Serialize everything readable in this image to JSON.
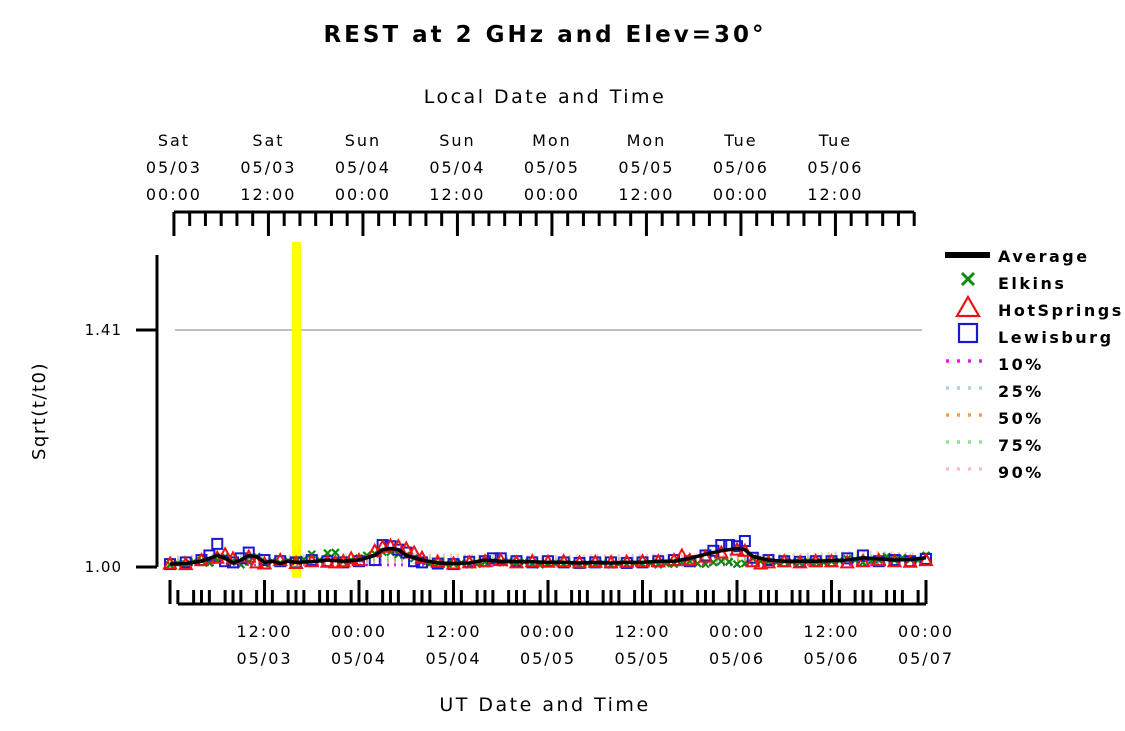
{
  "chart_data": {
    "type": "line",
    "title": "REST at 2 GHz and Elev=30°",
    "xlabel": "UT Date and Time",
    "top_xlabel": "Local Date and Time",
    "ylabel": "Sqrt(t/t0)",
    "ylim": [
      1.0,
      1.52
    ],
    "y_ticks": [
      {
        "value": 1.0,
        "label": "1.00"
      },
      {
        "value": 1.41,
        "label": "1.41"
      }
    ],
    "y_gridline": 1.41,
    "grid": false,
    "legend_position": "right",
    "bottom_ticks": [
      {
        "hour": 12,
        "time": "12:00",
        "date": "05/03"
      },
      {
        "hour": 24,
        "time": "00:00",
        "date": "05/04"
      },
      {
        "hour": 36,
        "time": "12:00",
        "date": "05/04"
      },
      {
        "hour": 48,
        "time": "00:00",
        "date": "05/05"
      },
      {
        "hour": 60,
        "time": "12:00",
        "date": "05/05"
      },
      {
        "hour": 72,
        "time": "00:00",
        "date": "05/06"
      },
      {
        "hour": 84,
        "time": "12:00",
        "date": "05/06"
      },
      {
        "hour": 96,
        "time": "00:00",
        "date": "05/07"
      }
    ],
    "top_ticks": [
      {
        "hour": 0.5,
        "day": "Sat",
        "date": "05/03",
        "time": "00:00"
      },
      {
        "hour": 12.5,
        "day": "Sat",
        "date": "05/03",
        "time": "12:00"
      },
      {
        "hour": 24.5,
        "day": "Sun",
        "date": "05/04",
        "time": "00:00"
      },
      {
        "hour": 36.5,
        "day": "Sun",
        "date": "05/04",
        "time": "12:00"
      },
      {
        "hour": 48.5,
        "day": "Mon",
        "date": "05/05",
        "time": "00:00"
      },
      {
        "hour": 60.5,
        "day": "Mon",
        "date": "05/05",
        "time": "12:00"
      },
      {
        "hour": 72.5,
        "day": "Tue",
        "date": "05/06",
        "time": "00:00"
      },
      {
        "hour": 84.5,
        "day": "Tue",
        "date": "05/06",
        "time": "12:00"
      }
    ],
    "marker_hour": 16,
    "legend": [
      {
        "label": "Average",
        "style": "line",
        "color": "#000000"
      },
      {
        "label": "Elkins",
        "style": "x",
        "color": "#0a8a0a"
      },
      {
        "label": "HotSprings",
        "style": "triangle",
        "color": "#ee1111"
      },
      {
        "label": "Lewisburg",
        "style": "square",
        "color": "#1a1acc"
      },
      {
        "label": "10%",
        "style": "dotted",
        "color": "#e020e0"
      },
      {
        "label": "25%",
        "style": "dotted",
        "color": "#a8d4e4"
      },
      {
        "label": "50%",
        "style": "dotted",
        "color": "#f4a040"
      },
      {
        "label": "75%",
        "style": "dotted",
        "color": "#90e090"
      },
      {
        "label": "90%",
        "style": "dotted",
        "color": "#f8c0c8"
      }
    ],
    "series": [
      {
        "name": "Average",
        "x": [
          0,
          2,
          4,
          6,
          7,
          8,
          9,
          10,
          11,
          12,
          13,
          14,
          15,
          16,
          18,
          20,
          22,
          24,
          26,
          27,
          28,
          29,
          30,
          32,
          34,
          36,
          38,
          40,
          42,
          44,
          46,
          48,
          50,
          52,
          54,
          56,
          58,
          60,
          62,
          64,
          66,
          68,
          70,
          72,
          73,
          74,
          76,
          78,
          80,
          82,
          84,
          86,
          88,
          90,
          92,
          94,
          96
        ],
        "y": [
          1.005,
          1.006,
          1.01,
          1.02,
          1.015,
          1.007,
          1.012,
          1.02,
          1.018,
          1.008,
          1.01,
          1.006,
          1.01,
          1.008,
          1.009,
          1.012,
          1.01,
          1.012,
          1.02,
          1.03,
          1.032,
          1.03,
          1.02,
          1.012,
          1.007,
          1.006,
          1.007,
          1.012,
          1.01,
          1.009,
          1.009,
          1.008,
          1.008,
          1.007,
          1.008,
          1.007,
          1.008,
          1.008,
          1.01,
          1.01,
          1.015,
          1.022,
          1.028,
          1.032,
          1.03,
          1.018,
          1.012,
          1.01,
          1.01,
          1.01,
          1.011,
          1.012,
          1.016,
          1.014,
          1.012,
          1.013,
          1.016
        ]
      },
      {
        "name": "Elkins",
        "x": [
          0,
          1,
          2,
          3,
          4,
          5,
          6,
          7,
          8,
          9,
          10,
          11,
          12,
          13,
          14,
          15,
          16,
          17,
          18,
          19,
          20,
          21,
          22,
          23,
          24,
          25,
          26,
          27,
          28,
          29,
          30,
          31,
          32,
          33,
          34,
          35,
          36,
          37,
          38,
          39,
          40,
          41,
          42,
          43,
          44,
          45,
          46,
          47,
          48,
          49,
          50,
          51,
          52,
          53,
          54,
          55,
          56,
          57,
          58,
          59,
          60,
          61,
          62,
          63,
          64,
          65,
          66,
          67,
          68,
          69,
          70,
          71,
          72,
          73,
          74,
          75,
          76,
          77,
          78,
          79,
          80,
          81,
          82,
          83,
          84,
          85,
          86,
          87,
          88,
          89,
          90,
          91,
          92,
          93,
          94,
          95,
          96
        ],
        "y": [
          1.004,
          1.006,
          1.005,
          1.009,
          1.011,
          1.007,
          1.012,
          1.018,
          1.01,
          1.004,
          1.009,
          1.018,
          1.006,
          1.01,
          1.007,
          1.011,
          1.01,
          1.013,
          1.022,
          1.012,
          1.024,
          1.025,
          1.01,
          1.012,
          1.015,
          1.02,
          1.023,
          1.026,
          1.026,
          1.022,
          1.02,
          1.015,
          1.01,
          1.006,
          1.007,
          1.005,
          1.006,
          1.007,
          1.004,
          1.005,
          1.009,
          1.01,
          1.008,
          1.01,
          1.007,
          1.009,
          1.006,
          1.004,
          1.006,
          1.007,
          1.005,
          1.006,
          1.004,
          1.006,
          1.005,
          1.007,
          1.004,
          1.006,
          1.005,
          1.006,
          1.005,
          1.006,
          1.004,
          1.006,
          1.005,
          1.008,
          1.01,
          1.006,
          1.005,
          1.008,
          1.01,
          1.009,
          1.005,
          1.006,
          1.015,
          1.01,
          1.009,
          1.008,
          1.01,
          1.009,
          1.008,
          1.01,
          1.009,
          1.008,
          1.01,
          1.011,
          1.014,
          1.012,
          1.008,
          1.01,
          1.012,
          1.018,
          1.012,
          1.016,
          1.013,
          1.012,
          1.02
        ]
      },
      {
        "name": "HotSprings",
        "x": [
          0,
          2,
          4,
          6,
          7,
          8,
          10,
          11,
          12,
          14,
          16,
          18,
          20,
          21,
          22,
          23,
          24,
          26,
          27,
          28,
          29,
          30,
          31,
          32,
          34,
          36,
          38,
          40,
          42,
          44,
          46,
          48,
          50,
          52,
          54,
          56,
          58,
          60,
          62,
          64,
          65,
          66,
          68,
          70,
          72,
          73,
          74,
          75,
          76,
          78,
          80,
          82,
          84,
          86,
          88,
          90,
          92,
          94,
          96
        ],
        "y": [
          1.006,
          1.005,
          1.012,
          1.016,
          1.022,
          1.015,
          1.018,
          1.008,
          1.006,
          1.012,
          1.007,
          1.01,
          1.009,
          1.008,
          1.01,
          1.015,
          1.012,
          1.028,
          1.035,
          1.037,
          1.036,
          1.032,
          1.025,
          1.016,
          1.009,
          1.006,
          1.008,
          1.01,
          1.012,
          1.008,
          1.01,
          1.009,
          1.01,
          1.008,
          1.009,
          1.008,
          1.009,
          1.01,
          1.01,
          1.012,
          1.02,
          1.012,
          1.018,
          1.025,
          1.03,
          1.028,
          1.01,
          1.006,
          1.008,
          1.01,
          1.008,
          1.01,
          1.01,
          1.008,
          1.01,
          1.012,
          1.01,
          1.009,
          1.012
        ]
      },
      {
        "name": "Lewisburg",
        "x": [
          0,
          2,
          4,
          5,
          6,
          7,
          8,
          9,
          10,
          12,
          14,
          16,
          18,
          20,
          22,
          24,
          26,
          27,
          28,
          29,
          30,
          31,
          32,
          34,
          36,
          38,
          40,
          41,
          42,
          44,
          46,
          48,
          50,
          52,
          54,
          56,
          58,
          60,
          62,
          64,
          66,
          68,
          69,
          70,
          71,
          72,
          73,
          74,
          76,
          78,
          80,
          82,
          84,
          86,
          88,
          90,
          92,
          94,
          96
        ],
        "y": [
          1.005,
          1.008,
          1.012,
          1.02,
          1.04,
          1.01,
          1.008,
          1.015,
          1.025,
          1.012,
          1.01,
          1.008,
          1.012,
          1.01,
          1.008,
          1.01,
          1.012,
          1.038,
          1.036,
          1.03,
          1.025,
          1.01,
          1.008,
          1.006,
          1.005,
          1.009,
          1.01,
          1.015,
          1.015,
          1.01,
          1.008,
          1.01,
          1.008,
          1.007,
          1.008,
          1.008,
          1.007,
          1.008,
          1.01,
          1.012,
          1.01,
          1.02,
          1.028,
          1.038,
          1.038,
          1.036,
          1.045,
          1.016,
          1.012,
          1.01,
          1.009,
          1.01,
          1.01,
          1.015,
          1.02,
          1.01,
          1.012,
          1.01,
          1.014
        ]
      },
      {
        "name": "10%",
        "x": [
          0,
          8,
          16,
          24,
          32,
          40,
          48,
          56,
          64,
          72,
          80,
          88,
          96
        ],
        "y": [
          1.004,
          1.004,
          1.005,
          1.004,
          1.004,
          1.003,
          1.004,
          1.004,
          1.004,
          1.004,
          1.005,
          1.004,
          1.004
        ]
      },
      {
        "name": "25%",
        "x": [
          0,
          8,
          16,
          24,
          32,
          40,
          48,
          56,
          64,
          72,
          80,
          88,
          96
        ],
        "y": [
          1.006,
          1.008,
          1.007,
          1.008,
          1.009,
          1.007,
          1.007,
          1.008,
          1.008,
          1.009,
          1.009,
          1.01,
          1.009
        ]
      },
      {
        "name": "50%",
        "x": [
          0,
          8,
          16,
          24,
          32,
          40,
          48,
          56,
          64,
          72,
          80,
          88,
          96
        ],
        "y": [
          1.009,
          1.012,
          1.01,
          1.012,
          1.013,
          1.011,
          1.011,
          1.012,
          1.012,
          1.013,
          1.013,
          1.015,
          1.013
        ]
      },
      {
        "name": "75%",
        "x": [
          0,
          8,
          16,
          24,
          32,
          40,
          48,
          56,
          64,
          72,
          80,
          88,
          96
        ],
        "y": [
          1.012,
          1.018,
          1.014,
          1.016,
          1.017,
          1.015,
          1.014,
          1.016,
          1.016,
          1.017,
          1.017,
          1.02,
          1.017
        ]
      },
      {
        "name": "90%",
        "x": [
          0,
          8,
          16,
          24,
          32,
          40,
          48,
          56,
          64,
          72,
          80,
          88,
          96
        ],
        "y": [
          1.016,
          1.024,
          1.018,
          1.02,
          1.021,
          1.019,
          1.018,
          1.02,
          1.02,
          1.021,
          1.021,
          1.026,
          1.022
        ]
      }
    ]
  }
}
